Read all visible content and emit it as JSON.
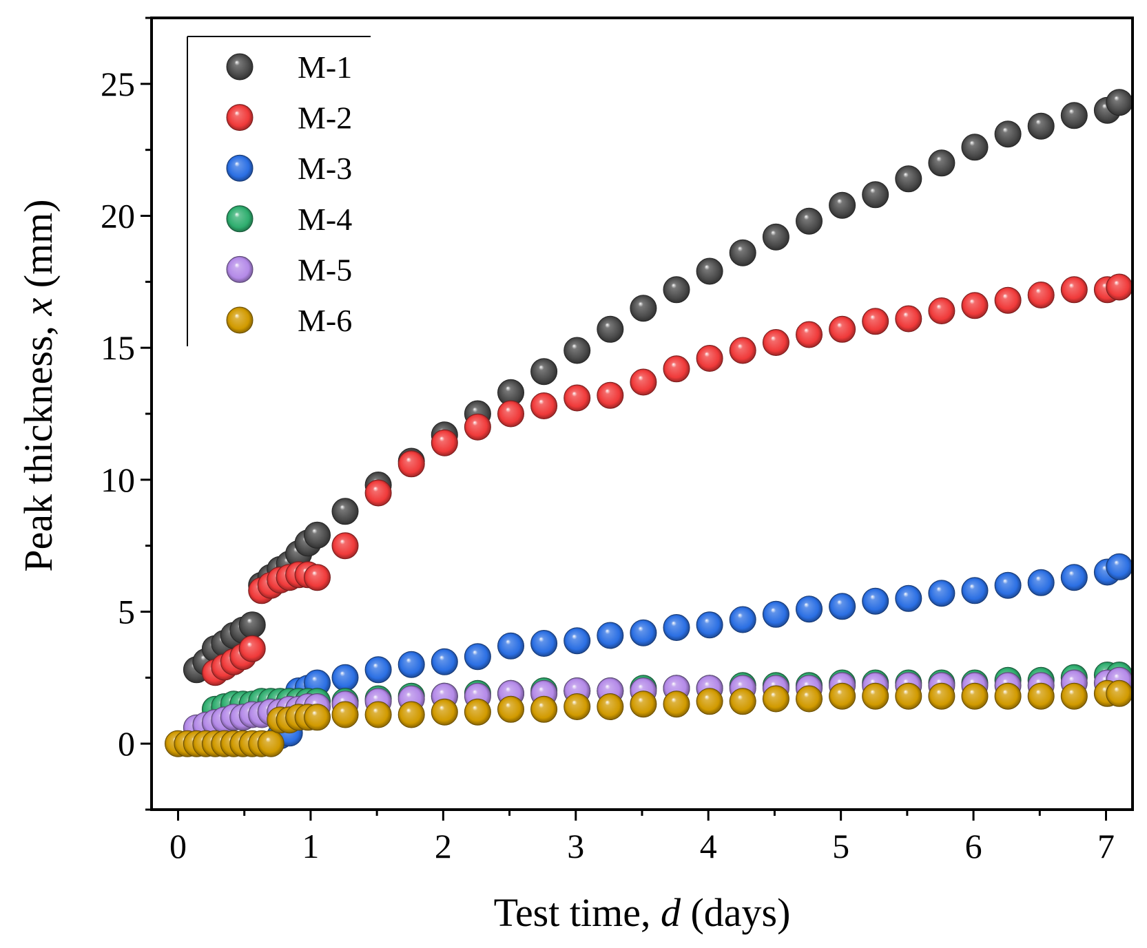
{
  "chart_data": {
    "type": "scatter",
    "title": "",
    "xlabel": {
      "prefix": "Test time, ",
      "variable": "d",
      "suffix": " (days)"
    },
    "ylabel": {
      "prefix": "Peak thickness, ",
      "variable": "x",
      "suffix": " (mm)"
    },
    "xlim": [
      -0.2,
      7.2
    ],
    "ylim": [
      -2.5,
      27.5
    ],
    "xticks": [
      0,
      1,
      2,
      3,
      4,
      5,
      6,
      7
    ],
    "xtick_labels": [
      "0",
      "1",
      "2",
      "3",
      "4",
      "5",
      "6",
      "7"
    ],
    "yticks": [
      0,
      5,
      10,
      15,
      20,
      25
    ],
    "ytick_labels": [
      "0",
      "5",
      "10",
      "15",
      "20",
      "25"
    ],
    "grid": false,
    "legend": {
      "position": "top-left"
    },
    "x": [
      0.0,
      0.07,
      0.14,
      0.21,
      0.28,
      0.35,
      0.42,
      0.49,
      0.56,
      0.63,
      0.7,
      0.77,
      0.84,
      0.91,
      0.98,
      1.05,
      1.26,
      1.51,
      1.76,
      2.01,
      2.26,
      2.51,
      2.76,
      3.01,
      3.26,
      3.51,
      3.76,
      4.01,
      4.26,
      4.51,
      4.76,
      5.01,
      5.26,
      5.51,
      5.76,
      6.01,
      6.26,
      6.51,
      6.76,
      7.01,
      7.1
    ],
    "series": [
      {
        "name": "M-1",
        "color": "#4a4a4a",
        "values": [
          null,
          null,
          2.8,
          3.1,
          3.6,
          3.8,
          4.1,
          4.3,
          4.5,
          6.0,
          6.3,
          6.6,
          6.8,
          7.2,
          7.6,
          7.9,
          8.8,
          9.8,
          10.7,
          11.7,
          12.5,
          13.3,
          14.1,
          14.9,
          15.7,
          16.5,
          17.2,
          17.9,
          18.6,
          19.2,
          19.8,
          20.4,
          20.8,
          21.4,
          22.0,
          22.6,
          23.1,
          23.4,
          23.8,
          24.0,
          24.3
        ]
      },
      {
        "name": "M-2",
        "color": "#f03a3a",
        "values": [
          null,
          null,
          null,
          null,
          2.7,
          2.9,
          3.1,
          3.3,
          3.6,
          5.8,
          6.0,
          6.2,
          6.3,
          6.4,
          6.4,
          6.3,
          7.5,
          9.5,
          10.6,
          11.4,
          12.0,
          12.5,
          12.8,
          13.1,
          13.2,
          13.7,
          14.2,
          14.6,
          14.9,
          15.2,
          15.5,
          15.7,
          16.0,
          16.1,
          16.4,
          16.6,
          16.8,
          17.0,
          17.2,
          17.2,
          17.3
        ]
      },
      {
        "name": "M-3",
        "color": "#2b6fe3",
        "values": [
          null,
          null,
          null,
          null,
          null,
          null,
          null,
          null,
          null,
          null,
          null,
          0.3,
          0.4,
          2.0,
          2.1,
          2.3,
          2.5,
          2.8,
          3.0,
          3.1,
          3.3,
          3.7,
          3.8,
          3.9,
          4.1,
          4.2,
          4.4,
          4.5,
          4.7,
          4.9,
          5.1,
          5.2,
          5.4,
          5.5,
          5.7,
          5.8,
          6.0,
          6.1,
          6.3,
          6.5,
          6.7
        ]
      },
      {
        "name": "M-4",
        "color": "#2fae6f",
        "values": [
          null,
          null,
          null,
          null,
          1.3,
          1.4,
          1.5,
          1.5,
          1.5,
          1.6,
          1.6,
          1.6,
          1.6,
          1.6,
          1.6,
          1.6,
          1.6,
          1.7,
          1.8,
          1.8,
          1.9,
          1.9,
          2.0,
          2.0,
          2.0,
          2.1,
          2.1,
          2.1,
          2.2,
          2.2,
          2.2,
          2.3,
          2.3,
          2.3,
          2.3,
          2.3,
          2.4,
          2.4,
          2.5,
          2.6,
          2.6
        ]
      },
      {
        "name": "M-5",
        "color": "#b48ae8",
        "values": [
          null,
          null,
          0.6,
          0.7,
          0.8,
          0.9,
          1.0,
          1.0,
          1.1,
          1.1,
          1.2,
          1.2,
          1.3,
          1.3,
          1.4,
          1.4,
          1.5,
          1.6,
          1.7,
          1.8,
          1.8,
          1.9,
          1.9,
          2.0,
          2.0,
          2.0,
          2.1,
          2.1,
          2.1,
          2.1,
          2.1,
          2.2,
          2.2,
          2.2,
          2.2,
          2.2,
          2.2,
          2.2,
          2.3,
          2.3,
          2.4
        ]
      },
      {
        "name": "M-6",
        "color": "#d19a00",
        "values": [
          0.0,
          0.0,
          0.0,
          0.0,
          0.0,
          0.0,
          0.0,
          0.0,
          0.0,
          0.0,
          0.0,
          0.9,
          0.9,
          1.0,
          1.0,
          1.0,
          1.1,
          1.1,
          1.1,
          1.2,
          1.2,
          1.3,
          1.3,
          1.4,
          1.4,
          1.5,
          1.5,
          1.6,
          1.6,
          1.7,
          1.7,
          1.8,
          1.8,
          1.8,
          1.8,
          1.8,
          1.8,
          1.8,
          1.8,
          1.9,
          1.9
        ]
      }
    ]
  }
}
